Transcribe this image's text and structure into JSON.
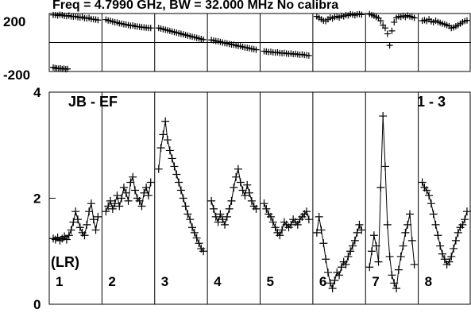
{
  "chart_data": [
    {
      "type": "scatter",
      "role": "phase",
      "title": "Freq = 4.7990 GHz, BW = 32.000 MHz  No calibra",
      "ylim": [
        -200,
        200
      ],
      "yticks": [
        200,
        -200
      ],
      "grid": true,
      "segments": [
        {
          "panel": 1,
          "x": [
            0,
            0.05,
            0.1,
            0.15,
            0.2,
            0.25,
            0.3,
            0.35,
            0.4,
            0.45,
            0.5,
            0.55,
            0.6,
            0.65,
            0.7,
            0.75,
            0.8,
            0.85,
            0.9,
            0.95,
            1
          ],
          "y": [
            190,
            190,
            186,
            192,
            189,
            184,
            182,
            186,
            180,
            178,
            181,
            175,
            172,
            176,
            168,
            166,
            170,
            162,
            160,
            158,
            155
          ]
        },
        {
          "panel": 2,
          "x": [
            0,
            0.05,
            0.1,
            0.15,
            0.2,
            0.25,
            0.3,
            0.35,
            0.4,
            0.45,
            0.5,
            0.55,
            0.6,
            0.65,
            0.7,
            0.75,
            0.8,
            0.85,
            0.9,
            0.95,
            1
          ],
          "y": [
            158,
            152,
            150,
            144,
            140,
            138,
            132,
            130,
            126,
            124,
            120,
            116,
            118,
            112,
            110,
            108,
            106,
            104,
            102,
            100,
            100
          ]
        },
        {
          "panel": 3,
          "x": [
            0,
            0.05,
            0.1,
            0.15,
            0.2,
            0.25,
            0.3,
            0.35,
            0.4,
            0.45,
            0.5,
            0.55,
            0.6,
            0.65,
            0.7,
            0.75,
            0.8,
            0.85,
            0.9,
            0.95,
            1
          ],
          "y": [
            100,
            96,
            92,
            88,
            84,
            80,
            76,
            72,
            68,
            64,
            60,
            56,
            52,
            48,
            44,
            40,
            36,
            32,
            28,
            24,
            20
          ]
        },
        {
          "panel": 4,
          "x": [
            0,
            0.05,
            0.1,
            0.15,
            0.2,
            0.25,
            0.3,
            0.35,
            0.4,
            0.45,
            0.5,
            0.55,
            0.6,
            0.65,
            0.7,
            0.75,
            0.8,
            0.85,
            0.9,
            0.95,
            1
          ],
          "y": [
            18,
            14,
            10,
            8,
            4,
            0,
            -4,
            -6,
            -10,
            -14,
            -16,
            -20,
            -24,
            -26,
            -30,
            -34,
            -36,
            -40,
            -44,
            -46,
            -50
          ]
        },
        {
          "panel": 5,
          "x": [
            0,
            0.05,
            0.1,
            0.15,
            0.2,
            0.25,
            0.3,
            0.35,
            0.4,
            0.45,
            0.5,
            0.55,
            0.6,
            0.65,
            0.7,
            0.75,
            0.8,
            0.85,
            0.9,
            0.95,
            1
          ],
          "y": [
            -60,
            -62,
            -66,
            -64,
            -68,
            -70,
            -68,
            -72,
            -74,
            -72,
            -76,
            -78,
            -76,
            -80,
            -78,
            -82,
            -84,
            -82,
            -86,
            -88,
            -90
          ]
        },
        {
          "panel": 6,
          "x": [
            0,
            0.05,
            0.1,
            0.15,
            0.2,
            0.25,
            0.3,
            0.35,
            0.4,
            0.45,
            0.5,
            0.55,
            0.6,
            0.65,
            0.7,
            0.75,
            0.8,
            0.85,
            0.9,
            0.95,
            1
          ],
          "y": [
            180,
            170,
            160,
            150,
            148,
            160,
            172,
            166,
            176,
            180,
            172,
            184,
            180,
            190,
            186,
            196,
            192,
            188,
            194,
            196,
            192
          ]
        },
        {
          "panel": 7,
          "x": [
            0,
            0.05,
            0.1,
            0.15,
            0.2,
            0.25,
            0.3,
            0.35,
            0.4,
            0.45,
            0.5,
            0.55,
            0.6,
            0.65,
            0.7,
            0.75,
            0.8,
            0.85,
            0.9,
            0.95,
            1
          ],
          "y": [
            196,
            190,
            184,
            176,
            168,
            150,
            120,
            100,
            60,
            -20,
            80,
            140,
            170,
            180,
            176,
            184,
            176,
            186,
            180,
            176,
            170
          ]
        },
        {
          "panel": 8,
          "x": [
            0,
            0.05,
            0.1,
            0.15,
            0.2,
            0.25,
            0.3,
            0.35,
            0.4,
            0.45,
            0.5,
            0.55,
            0.6,
            0.65,
            0.7,
            0.75,
            0.8,
            0.85,
            0.9,
            0.95,
            1
          ],
          "y": [
            150,
            154,
            148,
            160,
            146,
            140,
            150,
            142,
            136,
            130,
            126,
            120,
            114,
            100,
            104,
            112,
            120,
            130,
            140,
            148,
            152
          ]
        },
        {
          "panel": 1,
          "x": [
            0,
            0.04,
            0.08,
            0.12,
            0.16,
            0.2,
            0.24,
            0.28,
            0.32
          ],
          "y": [
            -172,
            -176,
            -178,
            -180,
            -178,
            -182,
            -180,
            -184,
            -182
          ]
        }
      ]
    },
    {
      "type": "line",
      "role": "amplitude",
      "ylim": [
        0,
        4
      ],
      "yticks": [
        0,
        2,
        4
      ],
      "ytick_labels": [
        "0",
        "2",
        "4"
      ],
      "grid": true,
      "annotations": {
        "baseline": "JB - EF",
        "ratio": "1 - 3",
        "unit": "(LR)"
      },
      "panels": [
        "1",
        "2",
        "3",
        "4",
        "5",
        "6",
        "7",
        "8"
      ],
      "series": [
        {
          "panel": 1,
          "x": [
            0,
            0.05,
            0.1,
            0.15,
            0.2,
            0.25,
            0.3,
            0.35,
            0.4,
            0.45,
            0.5,
            0.55,
            0.6,
            0.65,
            0.7,
            0.75,
            0.8,
            0.85,
            0.9,
            0.95,
            1
          ],
          "y": [
            1.24,
            1.22,
            1.26,
            1.2,
            1.24,
            1.28,
            1.22,
            1.3,
            1.4,
            1.55,
            1.75,
            1.6,
            1.45,
            1.35,
            1.3,
            1.5,
            1.75,
            1.9,
            1.6,
            1.4,
            1.65
          ]
        },
        {
          "panel": 2,
          "x": [
            0,
            0.05,
            0.1,
            0.15,
            0.2,
            0.25,
            0.3,
            0.35,
            0.4,
            0.45,
            0.5,
            0.55,
            0.6,
            0.65,
            0.7,
            0.75,
            0.8,
            0.85,
            0.9,
            0.95,
            1
          ],
          "y": [
            1.75,
            1.85,
            1.95,
            1.8,
            1.9,
            2.05,
            1.85,
            2.0,
            2.2,
            2.1,
            1.95,
            2.3,
            2.4,
            2.15,
            2.0,
            1.95,
            1.85,
            2.1,
            2.2,
            2.05,
            2.3
          ]
        },
        {
          "panel": 3,
          "x": [
            0,
            0.05,
            0.1,
            0.15,
            0.2,
            0.25,
            0.3,
            0.35,
            0.4,
            0.45,
            0.5,
            0.55,
            0.6,
            0.65,
            0.7,
            0.75,
            0.8,
            0.85,
            0.9,
            0.95,
            1
          ],
          "y": [
            2.55,
            2.95,
            3.2,
            3.45,
            3.1,
            2.9,
            2.75,
            2.6,
            2.45,
            2.3,
            2.15,
            2.0,
            1.85,
            1.7,
            1.6,
            1.45,
            1.35,
            1.25,
            1.15,
            1.05,
            1.0
          ]
        },
        {
          "panel": 4,
          "x": [
            0,
            0.05,
            0.1,
            0.15,
            0.2,
            0.25,
            0.3,
            0.35,
            0.4,
            0.45,
            0.5,
            0.55,
            0.6,
            0.65,
            0.7,
            0.75,
            0.8,
            0.85,
            0.9,
            0.95,
            1
          ],
          "y": [
            1.95,
            1.8,
            1.65,
            1.55,
            1.7,
            1.6,
            1.5,
            1.65,
            1.8,
            1.95,
            2.2,
            2.4,
            2.55,
            2.3,
            2.15,
            2.05,
            2.25,
            2.1,
            1.95,
            1.85,
            1.8
          ]
        },
        {
          "panel": 5,
          "x": [
            0,
            0.05,
            0.1,
            0.15,
            0.2,
            0.25,
            0.3,
            0.35,
            0.4,
            0.45,
            0.5,
            0.55,
            0.6,
            0.65,
            0.7,
            0.75,
            0.8,
            0.85,
            0.9,
            0.95,
            1
          ],
          "y": [
            1.9,
            1.8,
            1.7,
            1.65,
            1.55,
            1.45,
            1.35,
            1.3,
            1.4,
            1.55,
            1.5,
            1.45,
            1.5,
            1.6,
            1.55,
            1.5,
            1.6,
            1.65,
            1.7,
            1.75,
            1.6
          ]
        },
        {
          "panel": 6,
          "x": [
            0,
            0.05,
            0.1,
            0.15,
            0.2,
            0.25,
            0.3,
            0.35,
            0.4,
            0.45,
            0.5,
            0.55,
            0.6,
            0.65,
            0.7,
            0.75,
            0.8,
            0.85,
            0.9,
            0.95,
            1
          ],
          "y": [
            1.35,
            1.65,
            1.4,
            1.15,
            0.85,
            0.6,
            0.4,
            0.3,
            0.45,
            0.6,
            0.55,
            0.7,
            0.8,
            0.75,
            0.9,
            1.0,
            1.1,
            1.2,
            1.35,
            1.5,
            1.4
          ]
        },
        {
          "panel": 7,
          "x": [
            0,
            0.05,
            0.1,
            0.15,
            0.2,
            0.25,
            0.3,
            0.35,
            0.4,
            0.45,
            0.5,
            0.55,
            0.6,
            0.65,
            0.7,
            0.75,
            0.8,
            0.85,
            0.9,
            0.95,
            1
          ],
          "y": [
            0.7,
            1.0,
            1.3,
            1.1,
            0.8,
            2.2,
            3.55,
            2.6,
            1.5,
            0.9,
            0.55,
            0.4,
            0.3,
            0.65,
            0.9,
            1.1,
            1.35,
            1.5,
            1.7,
            1.2,
            0.75
          ]
        },
        {
          "panel": 8,
          "x": [
            0,
            0.05,
            0.1,
            0.15,
            0.2,
            0.25,
            0.3,
            0.35,
            0.4,
            0.45,
            0.5,
            0.55,
            0.6,
            0.65,
            0.7,
            0.75,
            0.8,
            0.85,
            0.9,
            0.95,
            1
          ],
          "y": [
            2.3,
            2.2,
            2.15,
            2.05,
            1.9,
            1.7,
            1.5,
            1.3,
            1.1,
            0.95,
            0.85,
            0.75,
            0.8,
            0.9,
            1.05,
            1.2,
            1.35,
            1.45,
            1.5,
            1.6,
            1.75
          ]
        }
      ]
    }
  ]
}
